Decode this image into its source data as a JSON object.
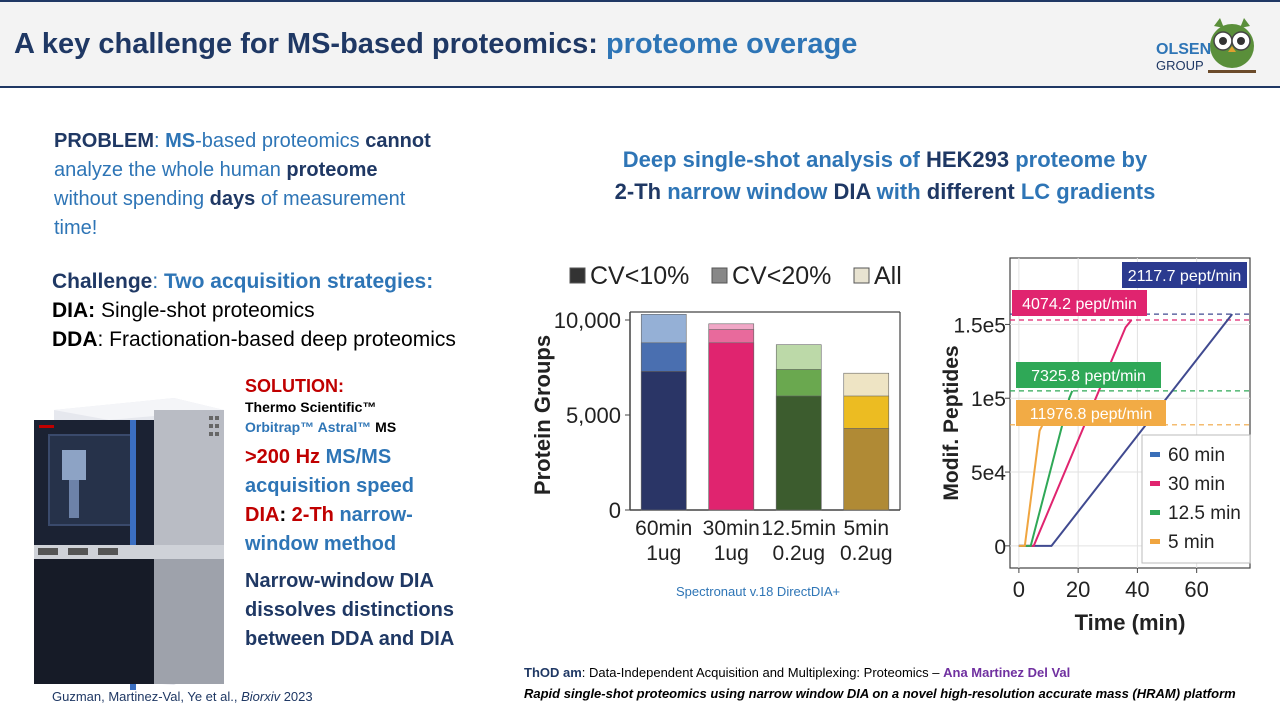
{
  "header": {
    "title_main": "A key challenge for MS-based proteomics: ",
    "title_highlight": "proteome overage",
    "logo_line1": "OLSEN",
    "logo_line2": "GROUP"
  },
  "problem": {
    "label": "PROBLEM",
    "t1": ": ",
    "ms": "MS",
    "t2": "-based proteomics ",
    "cannot": "cannot",
    "t3": " analyze the whole human ",
    "proteome": "proteome",
    "t4": " without spending ",
    "days": "days",
    "t5": " of measurement time!"
  },
  "challenge": {
    "label": "Challenge",
    "sep": ": ",
    "text": "Two acquisition strategies:",
    "dia_label": "DIA:",
    "dia_text": " Single-shot proteomics",
    "dda_label": "DDA",
    "dda_text": ": Fractionation-based deep proteomics"
  },
  "solution": {
    "label": "SOLUTION:",
    "line1": "Thermo Scientific™",
    "line2_a": "Orbitrap™ Astral™",
    "line2_b": " MS",
    "speed_a": ">200 Hz",
    "speed_b": " MS/MS acquisition speed",
    "dia_a": "DIA",
    "dia_b": ": ",
    "dia_c": "2-Th",
    "dia_d": " narrow-window method",
    "nw": "Narrow-window DIA dissolves distinctions between DDA and DIA"
  },
  "chart_title": {
    "l1_a": "Deep single-shot analysis of ",
    "l1_b": "HEK293",
    "l1_c": " proteome by",
    "l2_a": "2-Th",
    "l2_b": " narrow window ",
    "l2_c": "DIA",
    "l2_d": " with ",
    "l2_e": "different",
    "l2_f": " LC gradients"
  },
  "chart_data": [
    {
      "type": "bar",
      "title": "",
      "xlabel": "",
      "ylabel": "Protein Groups",
      "ylim": [
        0,
        10000
      ],
      "yticks": [
        "0",
        "5,000",
        "10,000"
      ],
      "legend": [
        "CV<10%",
        "CV<20%",
        "All"
      ],
      "categories": [
        {
          "l1": "60min",
          "l2": "1ug"
        },
        {
          "l1": "30min",
          "l2": "1ug"
        },
        {
          "l1": "12.5min",
          "l2": "0.2ug"
        },
        {
          "l1": "5min",
          "l2": "0.2ug"
        }
      ],
      "series": [
        {
          "name": "CV<10%",
          "values": [
            7300,
            8800,
            6000,
            4300
          ]
        },
        {
          "name": "CV<20%",
          "values": [
            8800,
            9500,
            7400,
            6000
          ]
        },
        {
          "name": "All",
          "values": [
            10300,
            9800,
            8700,
            7200
          ]
        }
      ],
      "colors": [
        [
          "#2a3566",
          "#4a6fb0",
          "#95b0d6"
        ],
        [
          "#e0246f",
          "#e86a9c",
          "#f0a7c6"
        ],
        [
          "#3c5c2e",
          "#6aa84f",
          "#bcd9a8"
        ],
        [
          "#b08a35",
          "#ecbc22",
          "#eee4c4"
        ]
      ],
      "legend_colors": [
        "#333333",
        "#888888",
        "#e8e3d1"
      ],
      "software": "Spectronaut v.18 DirectDIA+"
    },
    {
      "type": "line",
      "xlabel": "Time (min)",
      "ylabel": "Modif. Peptides",
      "xlim": [
        -3,
        78
      ],
      "ylim": [
        -15000,
        195000
      ],
      "xticks": [
        "0",
        "20",
        "40",
        "60"
      ],
      "yticks": [
        "0",
        "5e4",
        "1e5",
        "1.5e5"
      ],
      "series": [
        {
          "name": "60 min",
          "color": "#404a90",
          "rate": "2117.7 pept/min",
          "rate_color": "#2b3a8f",
          "line_color": "#404a90",
          "x": [
            0,
            11,
            72
          ],
          "y": [
            0,
            0,
            157000
          ]
        },
        {
          "name": "30 min",
          "color": "#e0246f",
          "rate": "4074.2 pept/min",
          "rate_color": "#e0246f",
          "line_color": "#e0246f",
          "x": [
            0,
            5,
            36,
            38
          ],
          "y": [
            0,
            0,
            148000,
            153000
          ]
        },
        {
          "name": "12.5 min",
          "color": "#2fa857",
          "rate": "7325.8 pept/min",
          "rate_color": "#2fa857",
          "line_color": "#2fa857",
          "x": [
            0,
            4,
            17,
            18
          ],
          "y": [
            0,
            0,
            100000,
            105000
          ]
        },
        {
          "name": "5 min",
          "color": "#f0a540",
          "rate": "11976.8 pept/min",
          "rate_color": "#f2ab45",
          "line_color": "#f0a540",
          "x": [
            0,
            2,
            7,
            8
          ],
          "y": [
            0,
            0,
            78000,
            82000
          ]
        }
      ],
      "legend_order": [
        "60 min",
        "30 min",
        "12.5 min",
        "5 min"
      ],
      "legend_colors": [
        "#3a6fb8",
        "#e0246f",
        "#2fa857",
        "#f0a540"
      ]
    }
  ],
  "footer": {
    "thod": "ThOD am",
    "desc": ": Data-Independent Acquisition and Multiplexing: Proteomics – ",
    "author": "Ana Martinez Del Val",
    "subtitle": "Rapid single-shot proteomics using narrow window DIA on a novel high-resolution accurate mass (HRAM) platform",
    "cite_a": "Guzman, Martinez-Val, Ye et al., ",
    "cite_b": "Biorxiv",
    "cite_c": " 2023"
  }
}
